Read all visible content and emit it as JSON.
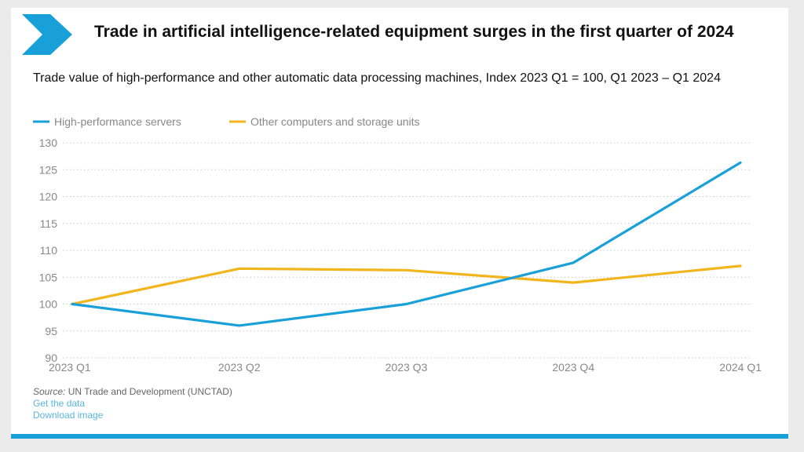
{
  "header": {
    "title": "Trade in artificial intelligence-related equipment surges in the first quarter of 2024",
    "subtitle": "Trade value of high-performance and other automatic data processing machines, Index 2023 Q1 = 100, Q1 2023 – Q1 2024"
  },
  "footer": {
    "source_label": "Source:",
    "source_text": "UN Trade and Development (UNCTAD)",
    "get_data": "Get the data",
    "download": "Download image"
  },
  "colors": {
    "accent": "#1aa0d9",
    "series1": "#1aa0d9",
    "series2": "#f2b51d"
  },
  "chart_data": {
    "type": "line",
    "title": "Trade in artificial intelligence-related equipment surges in the first quarter of 2024",
    "subtitle": "Trade value of high-performance and other automatic data processing machines, Index 2023 Q1 = 100, Q1 2023 – Q1 2024",
    "categories": [
      "2023 Q1",
      "2023 Q2",
      "2023 Q3",
      "2023 Q4",
      "2024 Q1"
    ],
    "series": [
      {
        "name": "High-performance servers",
        "color": "#1aa0d9",
        "values": [
          100,
          96,
          100,
          107.7,
          126.3
        ]
      },
      {
        "name": "Other computers and storage units",
        "color": "#f2b51d",
        "values": [
          100,
          106.6,
          106.3,
          104,
          107.1
        ]
      }
    ],
    "ylim": [
      90,
      130
    ],
    "yticks": [
      90,
      95,
      100,
      105,
      110,
      115,
      120,
      125,
      130
    ],
    "xlabel": "",
    "ylabel": "",
    "grid": true,
    "legend": "top-left"
  }
}
